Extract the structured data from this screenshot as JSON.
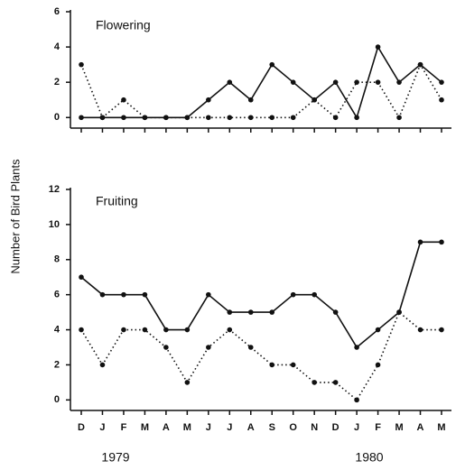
{
  "chart_data": [
    {
      "type": "line",
      "title": "Flowering",
      "ylabel": "Number of Bird Plants",
      "categories": [
        null,
        null,
        null,
        null,
        null,
        null,
        null,
        null,
        null,
        null,
        null,
        null,
        null,
        null,
        null,
        null,
        null,
        null
      ],
      "series": [
        {
          "color": "#111111",
          "style": "solid",
          "values": [
            0,
            0,
            0,
            0,
            0,
            0,
            1,
            2,
            1,
            3,
            2,
            1,
            2,
            0,
            4,
            2,
            3,
            2
          ]
        },
        {
          "color": "#111111",
          "style": "dotted",
          "values": [
            3,
            0,
            1,
            0,
            0,
            0,
            0,
            0,
            0,
            0,
            0,
            1,
            0,
            2,
            2,
            0,
            3,
            1
          ]
        }
      ],
      "ylim": [
        -0.6,
        6
      ],
      "yticks": [
        0,
        2,
        4,
        6
      ]
    },
    {
      "type": "line",
      "title": "Fruiting",
      "categories": [
        "D",
        "J",
        "F",
        "M",
        "A",
        "M",
        "J",
        "J",
        "A",
        "S",
        "O",
        "N",
        "D",
        "J",
        "F",
        "M",
        "A",
        "M"
      ],
      "series": [
        {
          "color": "#111111",
          "style": "solid",
          "values": [
            7,
            6,
            6,
            6,
            4,
            4,
            6,
            5,
            5,
            5,
            6,
            6,
            5,
            3,
            4,
            5,
            9,
            9
          ]
        },
        {
          "color": "#111111",
          "style": "dotted",
          "values": [
            4,
            2,
            4,
            4,
            3,
            1,
            3,
            4,
            3,
            2,
            2,
            1,
            1,
            0,
            2,
            5,
            4,
            4
          ]
        }
      ],
      "ylim": [
        -0.6,
        12
      ],
      "yticks": [
        0,
        2,
        4,
        6,
        8,
        10,
        12
      ],
      "annotations": [
        "1979",
        "1980"
      ]
    }
  ]
}
